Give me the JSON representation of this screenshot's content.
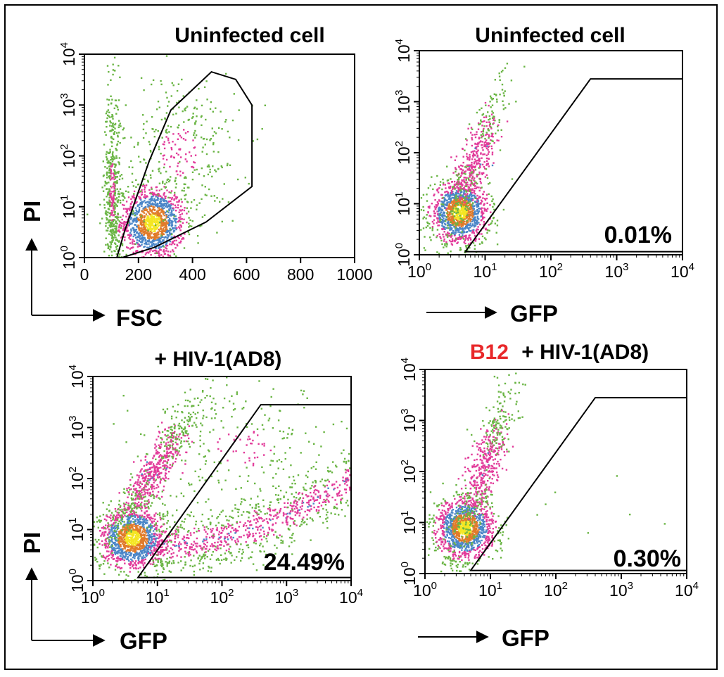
{
  "chart_data": [
    {
      "id": "tl",
      "type": "scatter",
      "title": "Uninfected cell",
      "xlabel": "FSC",
      "ylabel": "PI",
      "x_scale": "linear",
      "y_scale": "log",
      "xlim": [
        0,
        1000
      ],
      "ylim": [
        1,
        10000
      ],
      "x_ticks": [
        0,
        200,
        400,
        600,
        800,
        1000
      ],
      "x_tick_labels": [
        "0",
        "200",
        "400",
        "600",
        "800",
        "1000"
      ],
      "y_ticks": [
        1,
        10,
        100,
        1000,
        10000
      ],
      "y_tick_labels": [
        [
          "10",
          "0"
        ],
        [
          "10",
          "1"
        ],
        [
          "10",
          "2"
        ],
        [
          "10",
          "3"
        ],
        [
          "10",
          "4"
        ]
      ],
      "gate": {
        "shape": "polygon",
        "vertices": [
          [
            120,
            1.0
          ],
          [
            150,
            3.5
          ],
          [
            240,
            80
          ],
          [
            320,
            800
          ],
          [
            470,
            4500
          ],
          [
            560,
            3200
          ],
          [
            620,
            1000
          ],
          [
            620,
            25
          ],
          [
            450,
            5
          ],
          [
            260,
            1.6
          ],
          [
            140,
            1.0
          ]
        ]
      },
      "populations": [
        {
          "name": "main",
          "center": [
            250,
            5
          ],
          "spread": [
            60,
            0.35
          ],
          "count": 1300
        },
        {
          "name": "debris",
          "center": [
            100,
            20
          ],
          "spread": [
            15,
            1.0
          ],
          "count": 500
        },
        {
          "name": "gated_scatter",
          "center": [
            350,
            120
          ],
          "spread": [
            110,
            0.8
          ],
          "count": 350
        }
      ],
      "percentage": ""
    },
    {
      "id": "tr",
      "type": "scatter",
      "title": "Uninfected cell",
      "xlabel": "GFP",
      "ylabel": "",
      "x_scale": "log",
      "y_scale": "log",
      "xlim": [
        1,
        10000
      ],
      "ylim": [
        1,
        10000
      ],
      "x_ticks": [
        1,
        10,
        100,
        1000,
        10000
      ],
      "x_tick_labels": [
        [
          "10",
          "0"
        ],
        [
          "10",
          "1"
        ],
        [
          "10",
          "2"
        ],
        [
          "10",
          "3"
        ],
        [
          "10",
          "4"
        ]
      ],
      "y_ticks": [
        1,
        10,
        100,
        1000,
        10000
      ],
      "y_tick_labels": [
        [
          "10",
          "0"
        ],
        [
          "10",
          "1"
        ],
        [
          "10",
          "2"
        ],
        [
          "10",
          "3"
        ],
        [
          "10",
          "4"
        ]
      ],
      "gate": {
        "shape": "polygon",
        "vertices": [
          [
            5,
            1.15
          ],
          [
            400,
            2800
          ],
          [
            10000,
            2800
          ],
          [
            10000,
            1.15
          ]
        ]
      },
      "populations": [
        {
          "name": "main",
          "center": [
            4,
            7
          ],
          "spread": [
            0.22,
            0.3
          ],
          "count": 1300
        },
        {
          "name": "diagonal",
          "center": [
            7,
            80
          ],
          "spread": [
            0.2,
            0.7
          ],
          "count": 500
        }
      ],
      "percentage": "0.01%"
    },
    {
      "id": "bl",
      "type": "scatter",
      "title": "+ HIV-1(AD8)",
      "xlabel": "GFP",
      "ylabel": "PI",
      "x_scale": "log",
      "y_scale": "log",
      "xlim": [
        1,
        10000
      ],
      "ylim": [
        1,
        10000
      ],
      "x_ticks": [
        1,
        10,
        100,
        1000,
        10000
      ],
      "x_tick_labels": [
        [
          "10",
          "0"
        ],
        [
          "10",
          "1"
        ],
        [
          "10",
          "2"
        ],
        [
          "10",
          "3"
        ],
        [
          "10",
          "4"
        ]
      ],
      "y_ticks": [
        1,
        10,
        100,
        1000,
        10000
      ],
      "y_tick_labels": [
        [
          "10",
          "0"
        ],
        [
          "10",
          "1"
        ],
        [
          "10",
          "2"
        ],
        [
          "10",
          "3"
        ],
        [
          "10",
          "4"
        ]
      ],
      "gate": {
        "shape": "polygon",
        "vertices": [
          [
            5,
            1.15
          ],
          [
            400,
            2800
          ],
          [
            10000,
            2800
          ],
          [
            10000,
            1.15
          ]
        ]
      },
      "populations": [
        {
          "name": "main",
          "center": [
            4,
            7
          ],
          "spread": [
            0.25,
            0.3
          ],
          "count": 1300
        },
        {
          "name": "upper_diagonal",
          "center": [
            9,
            150
          ],
          "spread": [
            0.35,
            0.7
          ],
          "count": 700
        },
        {
          "name": "gfp_positive_tail",
          "center": [
            60,
            12
          ],
          "spread": [
            0.8,
            0.3
          ],
          "count": 1000
        },
        {
          "name": "upper_scatter",
          "center": [
            200,
            400
          ],
          "spread": [
            0.8,
            0.6
          ],
          "count": 250
        }
      ],
      "percentage": "24.49%"
    },
    {
      "id": "br",
      "type": "scatter",
      "title_prefix": "B12",
      "title": "+ HIV-1(AD8)",
      "xlabel": "GFP",
      "ylabel": "",
      "x_scale": "log",
      "y_scale": "log",
      "xlim": [
        1,
        10000
      ],
      "ylim": [
        1,
        10000
      ],
      "x_ticks": [
        1,
        10,
        100,
        1000,
        10000
      ],
      "x_tick_labels": [
        [
          "10",
          "0"
        ],
        [
          "10",
          "1"
        ],
        [
          "10",
          "2"
        ],
        [
          "10",
          "3"
        ],
        [
          "10",
          "4"
        ]
      ],
      "y_ticks": [
        1,
        10,
        100,
        1000,
        10000
      ],
      "y_tick_labels": [
        [
          "10",
          "0"
        ],
        [
          "10",
          "1"
        ],
        [
          "10",
          "2"
        ],
        [
          "10",
          "3"
        ],
        [
          "10",
          "4"
        ]
      ],
      "gate": {
        "shape": "polygon",
        "vertices": [
          [
            5,
            1.15
          ],
          [
            400,
            2800
          ],
          [
            10000,
            2800
          ],
          [
            10000,
            1.15
          ]
        ]
      },
      "populations": [
        {
          "name": "main",
          "center": [
            4,
            8
          ],
          "spread": [
            0.22,
            0.3
          ],
          "count": 1300
        },
        {
          "name": "diagonal",
          "center": [
            8,
            120
          ],
          "spread": [
            0.2,
            0.75
          ],
          "count": 600
        },
        {
          "name": "sparse_gfp_positive",
          "center": [
            300,
            20
          ],
          "spread": [
            0.9,
            0.5
          ],
          "count": 12
        }
      ],
      "percentage": "0.30%"
    }
  ],
  "colors": {
    "title_highlight": "#e8282a",
    "density_low": "#6ab544",
    "density_mid_low": "#e23b9a",
    "density_mid": "#4b86c8",
    "density_high": "#e07b2a",
    "density_peak": "#f4e623",
    "gate_stroke": "#000000"
  }
}
